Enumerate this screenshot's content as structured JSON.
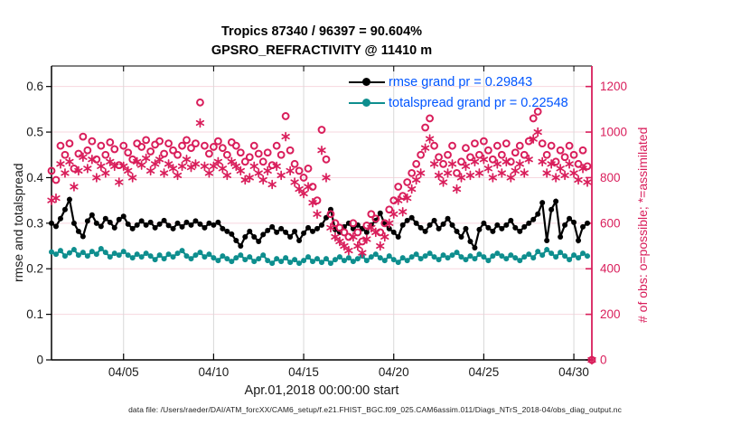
{
  "title": {
    "line1": "Tropics 87340 / 96397 = 90.604%",
    "line2": "GPSRO_REFRACTIVITY @ 11410 m"
  },
  "axes": {
    "xlabel": "Apr.01,2018 00:00:00 start",
    "ylabel_left": "rmse and totalspread",
    "ylabel_right": "# of obs: o=possible; *=assimilated"
  },
  "legend": {
    "items": [
      {
        "label": "rmse grand pr = 0.29843",
        "color": "#000000"
      },
      {
        "label": "totalspread grand pr = 0.22548",
        "color": "#0e8e8e"
      }
    ]
  },
  "caption": "data file: /Users/raeder/DAI/ATM_forcXX/CAM6_setup/f.e21.FHIST_BGC.f09_025.CAM6assim.011/Diags_NTrS_2018-04/obs_diag_output.nc",
  "colors": {
    "obs_pink": "#d91e5b",
    "teal": "#0e8e8e",
    "black": "#000000",
    "legend_text": "#0055ff",
    "grid_pink": "#f7d7df",
    "grid_gray": "#d9d9d9",
    "tick_text": "#1a1a1a"
  },
  "chart_data": {
    "type": "line",
    "title": "Tropics 87340 / 96397 = 90.604% — GPSRO_REFRACTIVITY @ 11410 m",
    "xlabel": "Apr.01,2018 00:00:00 start",
    "ylabel_left": "rmse and totalspread",
    "ylabel_right": "# of obs: o=possible; *=assimilated",
    "x_range_days": [
      0,
      30
    ],
    "x_step_days": 0.25,
    "x_ticks": [
      {
        "day": 4,
        "label": "04/05"
      },
      {
        "day": 9,
        "label": "04/10"
      },
      {
        "day": 14,
        "label": "04/15"
      },
      {
        "day": 19,
        "label": "04/20"
      },
      {
        "day": 24,
        "label": "04/25"
      },
      {
        "day": 29,
        "label": "04/30"
      }
    ],
    "left_axis": {
      "ticks": [
        0,
        0.1,
        0.2,
        0.3,
        0.4,
        0.5,
        0.6
      ],
      "max": 0.645
    },
    "right_axis": {
      "ticks": [
        0,
        200,
        400,
        600,
        800,
        1000,
        1200
      ],
      "max": 1290
    },
    "stats": {
      "rmse_grand_pr": 0.29843,
      "totalspread_grand_pr": 0.22548,
      "assimilated_total": 87340,
      "possible_total": 96397,
      "assimilated_percent": 90.604
    },
    "series": [
      {
        "name": "rmse",
        "type": "line-marker",
        "axis": "left",
        "color": "#000000",
        "values": [
          0.3,
          0.293,
          0.31,
          0.33,
          0.352,
          0.3,
          0.282,
          0.271,
          0.305,
          0.318,
          0.3,
          0.293,
          0.31,
          0.302,
          0.29,
          0.308,
          0.315,
          0.298,
          0.288,
          0.296,
          0.305,
          0.296,
          0.302,
          0.29,
          0.298,
          0.306,
          0.295,
          0.288,
          0.3,
          0.292,
          0.302,
          0.296,
          0.305,
          0.298,
          0.29,
          0.3,
          0.296,
          0.302,
          0.288,
          0.282,
          0.276,
          0.262,
          0.25,
          0.27,
          0.282,
          0.27,
          0.26,
          0.275,
          0.284,
          0.292,
          0.28,
          0.288,
          0.28,
          0.27,
          0.282,
          0.262,
          0.278,
          0.29,
          0.282,
          0.288,
          0.296,
          0.312,
          0.33,
          0.286,
          0.28,
          0.292,
          0.3,
          0.288,
          0.296,
          0.288,
          0.28,
          0.296,
          0.306,
          0.322,
          0.298,
          0.288,
          0.28,
          0.27,
          0.296,
          0.306,
          0.312,
          0.3,
          0.29,
          0.282,
          0.296,
          0.306,
          0.288,
          0.298,
          0.31,
          0.296,
          0.282,
          0.27,
          0.288,
          0.26,
          0.246,
          0.286,
          0.3,
          0.29,
          0.282,
          0.296,
          0.288,
          0.296,
          0.306,
          0.29,
          0.282,
          0.292,
          0.3,
          0.308,
          0.32,
          0.345,
          0.262,
          0.33,
          0.348,
          0.27,
          0.296,
          0.31,
          0.302,
          0.262,
          0.292,
          0.3
        ]
      },
      {
        "name": "totalspread",
        "type": "line-marker",
        "axis": "left",
        "color": "#0e8e8e",
        "values": [
          0.237,
          0.232,
          0.24,
          0.228,
          0.235,
          0.242,
          0.23,
          0.236,
          0.228,
          0.238,
          0.232,
          0.244,
          0.236,
          0.226,
          0.234,
          0.23,
          0.238,
          0.23,
          0.224,
          0.232,
          0.226,
          0.234,
          0.228,
          0.22,
          0.23,
          0.222,
          0.232,
          0.226,
          0.234,
          0.24,
          0.228,
          0.222,
          0.23,
          0.236,
          0.226,
          0.232,
          0.224,
          0.218,
          0.228,
          0.222,
          0.216,
          0.224,
          0.23,
          0.22,
          0.226,
          0.216,
          0.222,
          0.23,
          0.218,
          0.212,
          0.222,
          0.216,
          0.224,
          0.214,
          0.22,
          0.212,
          0.218,
          0.226,
          0.216,
          0.222,
          0.214,
          0.222,
          0.212,
          0.22,
          0.226,
          0.218,
          0.224,
          0.216,
          0.222,
          0.228,
          0.218,
          0.226,
          0.232,
          0.224,
          0.218,
          0.228,
          0.22,
          0.214,
          0.224,
          0.218,
          0.226,
          0.232,
          0.222,
          0.228,
          0.234,
          0.226,
          0.22,
          0.23,
          0.224,
          0.23,
          0.236,
          0.226,
          0.22,
          0.228,
          0.222,
          0.232,
          0.226,
          0.218,
          0.228,
          0.234,
          0.228,
          0.222,
          0.23,
          0.224,
          0.218,
          0.226,
          0.232,
          0.224,
          0.238,
          0.23,
          0.242,
          0.234,
          0.226,
          0.236,
          0.228,
          0.22,
          0.23,
          0.224,
          0.234,
          0.228
        ]
      },
      {
        "name": "possible",
        "type": "scatter-circle",
        "axis": "right",
        "color": "#d91e5b",
        "values": [
          830,
          790,
          940,
          900,
          950,
          840,
          905,
          980,
          920,
          960,
          880,
          940,
          900,
          955,
          925,
          855,
          940,
          910,
          880,
          950,
          935,
          965,
          915,
          945,
          960,
          905,
          950,
          920,
          900,
          940,
          965,
          930,
          950,
          1130,
          940,
          905,
          935,
          960,
          930,
          900,
          955,
          940,
          910,
          870,
          890,
          940,
          905,
          870,
          910,
          855,
          940,
          900,
          1070,
          920,
          860,
          830,
          800,
          840,
          760,
          700,
          1010,
          880,
          640,
          600,
          580,
          560,
          540,
          600,
          560,
          520,
          590,
          640,
          620,
          560,
          600,
          660,
          700,
          760,
          720,
          780,
          820,
          860,
          900,
          1020,
          1060,
          940,
          890,
          860,
          900,
          940,
          820,
          870,
          930,
          890,
          950,
          900,
          960,
          920,
          880,
          940,
          900,
          950,
          870,
          910,
          940,
          900,
          960,
          1060,
          1090,
          950,
          900,
          940,
          870,
          920,
          890,
          940,
          900,
          860,
          920,
          850,
          0
        ]
      },
      {
        "name": "assimilated",
        "type": "scatter-asterisk",
        "axis": "right",
        "color": "#d91e5b",
        "values": [
          700,
          710,
          860,
          820,
          870,
          760,
          830,
          890,
          840,
          880,
          800,
          850,
          820,
          870,
          850,
          780,
          850,
          830,
          800,
          870,
          855,
          885,
          830,
          860,
          880,
          820,
          860,
          840,
          810,
          850,
          880,
          845,
          860,
          1040,
          850,
          820,
          850,
          870,
          840,
          810,
          870,
          850,
          830,
          790,
          800,
          850,
          820,
          790,
          830,
          770,
          850,
          810,
          980,
          830,
          780,
          750,
          730,
          760,
          690,
          640,
          920,
          800,
          580,
          540,
          520,
          500,
          480,
          540,
          500,
          470,
          530,
          580,
          560,
          500,
          540,
          600,
          640,
          700,
          650,
          710,
          750,
          790,
          820,
          930,
          970,
          860,
          810,
          780,
          820,
          860,
          750,
          800,
          850,
          810,
          870,
          820,
          880,
          840,
          800,
          860,
          820,
          870,
          800,
          830,
          860,
          820,
          880,
          970,
          1000,
          870,
          820,
          860,
          800,
          840,
          810,
          860,
          820,
          790,
          840,
          780,
          0
        ]
      }
    ]
  }
}
